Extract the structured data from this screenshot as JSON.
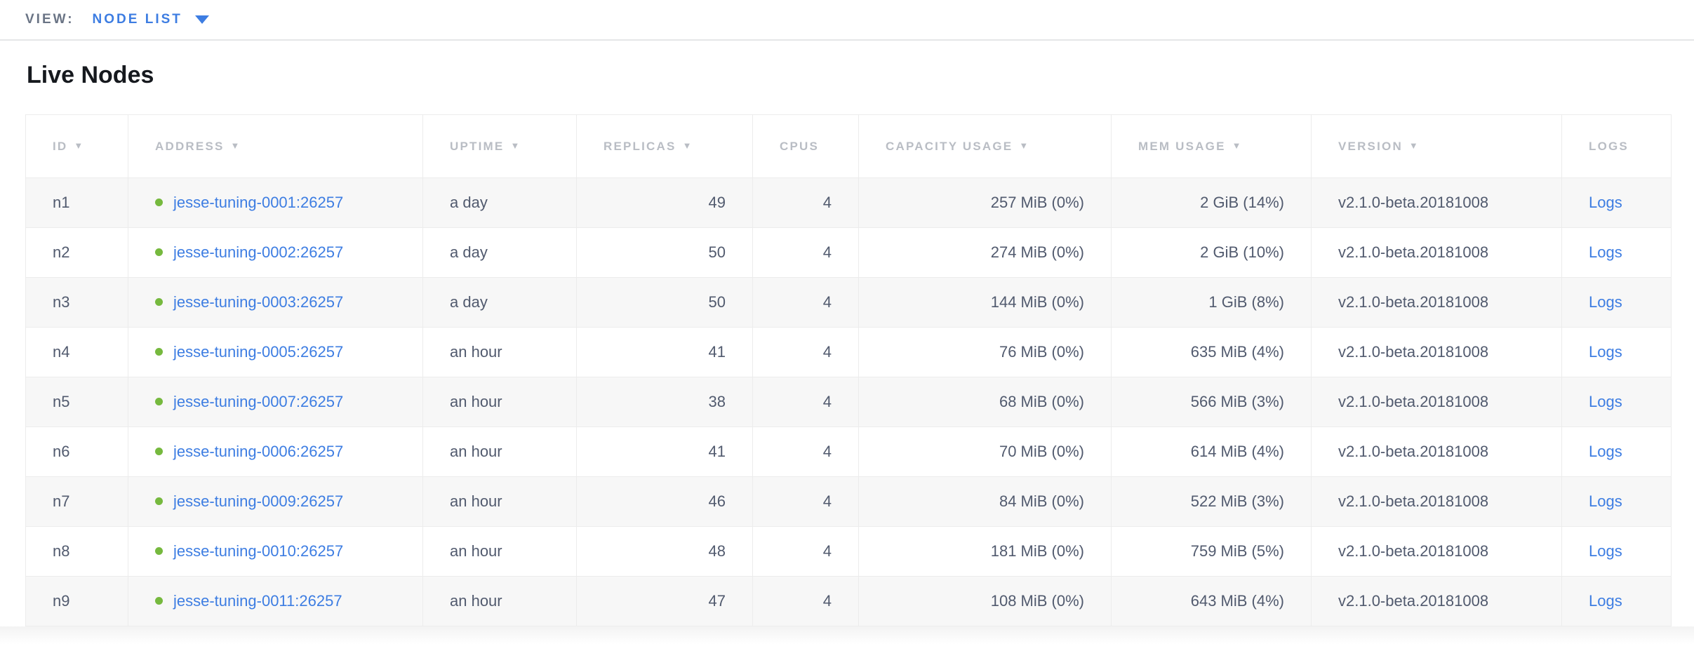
{
  "view_bar": {
    "label": "VIEW:",
    "selected": "NODE LIST"
  },
  "page": {
    "title": "Live Nodes"
  },
  "colors": {
    "link": "#3d7de2",
    "live_dot": "#76b93e",
    "row_stripe": "#f7f7f7",
    "header_text": "#b9bdc4",
    "cell_text": "#515a6e",
    "border": "#ececec"
  },
  "table": {
    "sort_indicator": "▼",
    "columns": [
      {
        "key": "id",
        "label": "ID",
        "sortable": true,
        "align": "left"
      },
      {
        "key": "address",
        "label": "ADDRESS",
        "sortable": true,
        "align": "left"
      },
      {
        "key": "uptime",
        "label": "UPTIME",
        "sortable": true,
        "align": "left"
      },
      {
        "key": "replicas",
        "label": "REPLICAS",
        "sortable": true,
        "align": "right"
      },
      {
        "key": "cpus",
        "label": "CPUS",
        "sortable": false,
        "align": "right"
      },
      {
        "key": "capacity_usage",
        "label": "CAPACITY USAGE",
        "sortable": true,
        "align": "right"
      },
      {
        "key": "mem_usage",
        "label": "MEM USAGE",
        "sortable": true,
        "align": "right"
      },
      {
        "key": "version",
        "label": "VERSION",
        "sortable": true,
        "align": "left"
      },
      {
        "key": "logs",
        "label": "LOGS",
        "sortable": false,
        "align": "left"
      }
    ],
    "rows": [
      {
        "id": "n1",
        "address": "jesse-tuning-0001:26257",
        "uptime": "a day",
        "replicas": "49",
        "cpus": "4",
        "capacity_usage": "257 MiB (0%)",
        "mem_usage": "2 GiB (14%)",
        "version": "v2.1.0-beta.20181008",
        "logs": "Logs"
      },
      {
        "id": "n2",
        "address": "jesse-tuning-0002:26257",
        "uptime": "a day",
        "replicas": "50",
        "cpus": "4",
        "capacity_usage": "274 MiB (0%)",
        "mem_usage": "2 GiB (10%)",
        "version": "v2.1.0-beta.20181008",
        "logs": "Logs"
      },
      {
        "id": "n3",
        "address": "jesse-tuning-0003:26257",
        "uptime": "a day",
        "replicas": "50",
        "cpus": "4",
        "capacity_usage": "144 MiB (0%)",
        "mem_usage": "1 GiB (8%)",
        "version": "v2.1.0-beta.20181008",
        "logs": "Logs"
      },
      {
        "id": "n4",
        "address": "jesse-tuning-0005:26257",
        "uptime": "an hour",
        "replicas": "41",
        "cpus": "4",
        "capacity_usage": "76 MiB (0%)",
        "mem_usage": "635 MiB (4%)",
        "version": "v2.1.0-beta.20181008",
        "logs": "Logs"
      },
      {
        "id": "n5",
        "address": "jesse-tuning-0007:26257",
        "uptime": "an hour",
        "replicas": "38",
        "cpus": "4",
        "capacity_usage": "68 MiB (0%)",
        "mem_usage": "566 MiB (3%)",
        "version": "v2.1.0-beta.20181008",
        "logs": "Logs"
      },
      {
        "id": "n6",
        "address": "jesse-tuning-0006:26257",
        "uptime": "an hour",
        "replicas": "41",
        "cpus": "4",
        "capacity_usage": "70 MiB (0%)",
        "mem_usage": "614 MiB (4%)",
        "version": "v2.1.0-beta.20181008",
        "logs": "Logs"
      },
      {
        "id": "n7",
        "address": "jesse-tuning-0009:26257",
        "uptime": "an hour",
        "replicas": "46",
        "cpus": "4",
        "capacity_usage": "84 MiB (0%)",
        "mem_usage": "522 MiB (3%)",
        "version": "v2.1.0-beta.20181008",
        "logs": "Logs"
      },
      {
        "id": "n8",
        "address": "jesse-tuning-0010:26257",
        "uptime": "an hour",
        "replicas": "48",
        "cpus": "4",
        "capacity_usage": "181 MiB (0%)",
        "mem_usage": "759 MiB (5%)",
        "version": "v2.1.0-beta.20181008",
        "logs": "Logs"
      },
      {
        "id": "n9",
        "address": "jesse-tuning-0011:26257",
        "uptime": "an hour",
        "replicas": "47",
        "cpus": "4",
        "capacity_usage": "108 MiB (0%)",
        "mem_usage": "643 MiB (4%)",
        "version": "v2.1.0-beta.20181008",
        "logs": "Logs"
      }
    ]
  }
}
